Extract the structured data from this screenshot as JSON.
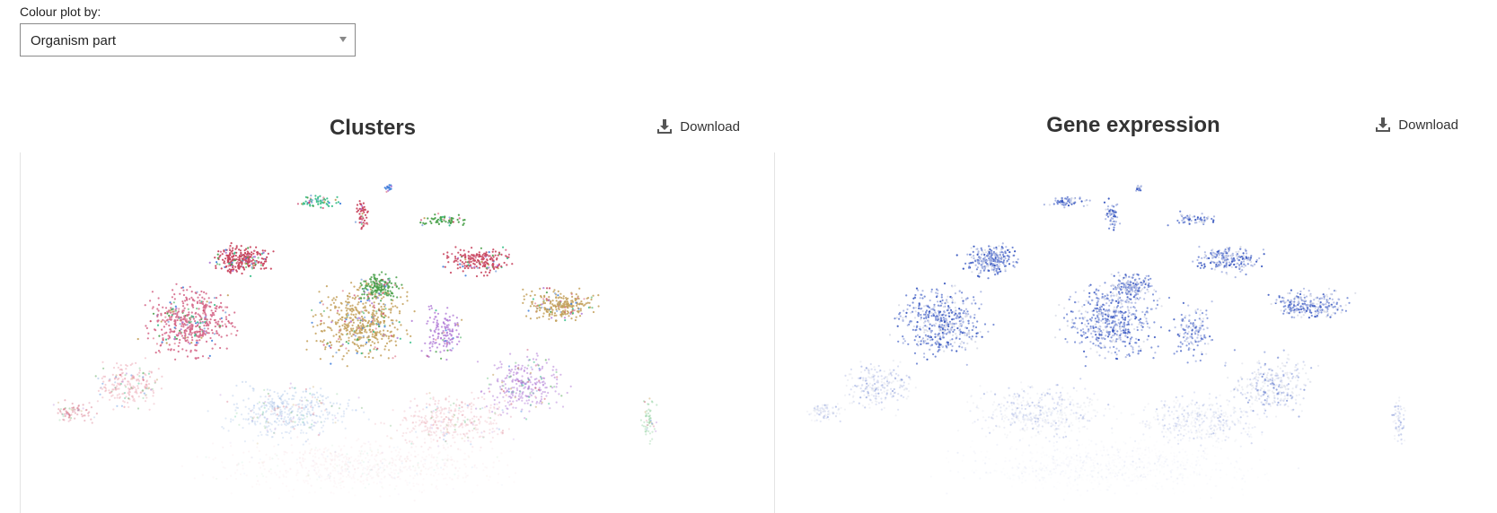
{
  "controls": {
    "colour_label": "Colour plot by:",
    "colour_value": "Organism part"
  },
  "panels": [
    {
      "title": "Clusters",
      "download_label": "Download",
      "download_icon": "download-icon",
      "cluster_colors": [
        "#c9465f",
        "#3bbf8a",
        "#4aa04a",
        "#3f7fdc",
        "#d66b8c",
        "#c3a05a",
        "#b07ad6",
        "#e89aa8",
        "#8fb0e0",
        "#7fc98f"
      ]
    },
    {
      "title": "Gene expression",
      "download_label": "Download",
      "download_icon": "download-icon",
      "expression_colors": [
        "#d9dde8",
        "#aab6e3",
        "#6f86d4",
        "#3554bf"
      ]
    }
  ]
}
